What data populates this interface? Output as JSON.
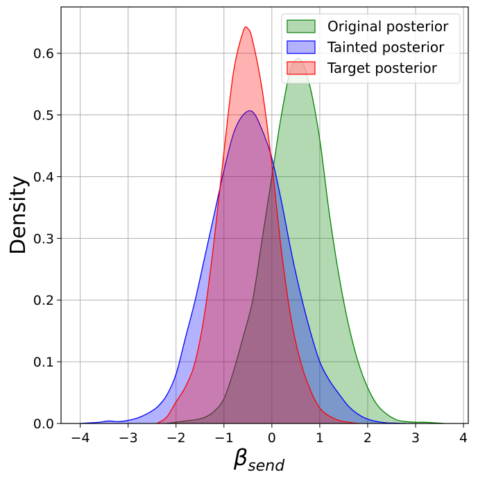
{
  "chart_data": {
    "type": "area",
    "title": "",
    "xlabel": "β",
    "xlabel_sub": "send",
    "ylabel": "Density",
    "xlim": [
      -4.4,
      4.1
    ],
    "ylim": [
      0,
      0.675
    ],
    "x_ticks": [
      -4,
      -3,
      -2,
      -1,
      0,
      1,
      2,
      3,
      4
    ],
    "x_tick_labels": [
      "−4",
      "−3",
      "−2",
      "−1",
      "0",
      "1",
      "2",
      "3",
      "4"
    ],
    "y_ticks": [
      0.0,
      0.1,
      0.2,
      0.3,
      0.4,
      0.5,
      0.6
    ],
    "y_tick_labels": [
      "0.0",
      "0.1",
      "0.2",
      "0.3",
      "0.4",
      "0.5",
      "0.6"
    ],
    "grid": true,
    "legend_position": "top-right",
    "series": [
      {
        "name": "Original posterior",
        "color": "#008000",
        "fill": "#008000",
        "x": [
          -2.2,
          -2.0,
          -1.8,
          -1.6,
          -1.4,
          -1.2,
          -1.0,
          -0.8,
          -0.6,
          -0.4,
          -0.2,
          0.0,
          0.2,
          0.4,
          0.6,
          0.8,
          1.0,
          1.2,
          1.4,
          1.6,
          1.8,
          2.0,
          2.2,
          2.4,
          2.6,
          2.8,
          3.0,
          3.2,
          3.4,
          3.6
        ],
        "y": [
          0.0,
          0.002,
          0.004,
          0.006,
          0.01,
          0.02,
          0.04,
          0.085,
          0.14,
          0.2,
          0.3,
          0.4,
          0.5,
          0.575,
          0.59,
          0.545,
          0.46,
          0.34,
          0.24,
          0.16,
          0.1,
          0.058,
          0.03,
          0.015,
          0.006,
          0.003,
          0.002,
          0.002,
          0.001,
          0.0
        ]
      },
      {
        "name": "Tainted posterior",
        "color": "#0000ff",
        "fill": "#0000ff",
        "x": [
          -4.0,
          -3.8,
          -3.6,
          -3.4,
          -3.2,
          -3.0,
          -2.8,
          -2.6,
          -2.4,
          -2.2,
          -2.0,
          -1.8,
          -1.6,
          -1.4,
          -1.2,
          -1.0,
          -0.8,
          -0.6,
          -0.4,
          -0.2,
          0.0,
          0.2,
          0.4,
          0.6,
          0.8,
          1.0,
          1.2,
          1.4,
          1.6,
          1.8,
          2.0,
          2.2,
          2.4,
          2.6,
          2.8
        ],
        "y": [
          0.0,
          0.001,
          0.002,
          0.004,
          0.003,
          0.005,
          0.009,
          0.016,
          0.026,
          0.045,
          0.08,
          0.14,
          0.2,
          0.27,
          0.34,
          0.41,
          0.47,
          0.5,
          0.505,
          0.475,
          0.43,
          0.36,
          0.28,
          0.21,
          0.15,
          0.1,
          0.07,
          0.048,
          0.028,
          0.015,
          0.007,
          0.003,
          0.001,
          0.0005,
          0.0
        ]
      },
      {
        "name": "Target posterior",
        "color": "#ff0000",
        "fill": "#ff0000",
        "x": [
          -2.4,
          -2.2,
          -2.0,
          -1.8,
          -1.6,
          -1.4,
          -1.2,
          -1.0,
          -0.8,
          -0.6,
          -0.5,
          -0.4,
          -0.2,
          0.0,
          0.2,
          0.4,
          0.6,
          0.8,
          1.0,
          1.2,
          1.4,
          1.6,
          1.8
        ],
        "y": [
          0.0,
          0.01,
          0.035,
          0.06,
          0.1,
          0.18,
          0.3,
          0.44,
          0.57,
          0.635,
          0.64,
          0.62,
          0.54,
          0.42,
          0.28,
          0.17,
          0.1,
          0.055,
          0.025,
          0.012,
          0.005,
          0.002,
          0.0
        ]
      }
    ]
  }
}
